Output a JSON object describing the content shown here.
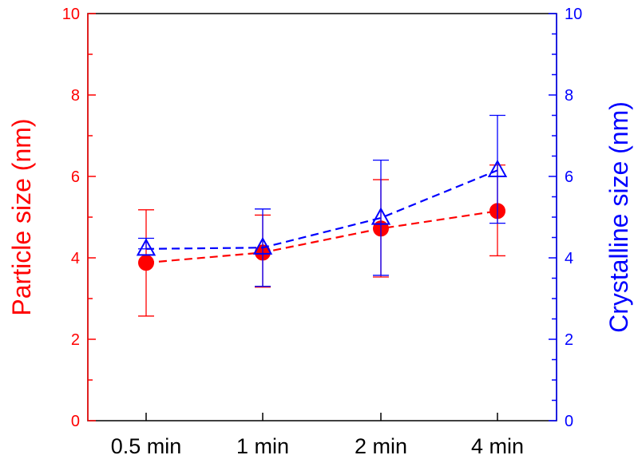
{
  "chart_data": {
    "type": "line",
    "categories": [
      "0.5 min",
      "1 min",
      "2 min",
      "4 min"
    ],
    "ylabel_left": "Particle size (nm)",
    "ylabel_right": "Crystalline size (nm)",
    "ylim_left": [
      0,
      10
    ],
    "ylim_right": [
      0,
      10
    ],
    "yticks_left": [
      "0",
      "2",
      "4",
      "6",
      "8",
      "10"
    ],
    "yticks_right": [
      "0",
      "2",
      "4",
      "6",
      "8",
      "10"
    ],
    "grid": false,
    "series": [
      {
        "axis": "left",
        "color": "#ff0000",
        "marker": "filled-circle",
        "line": "dashed",
        "values": [
          3.88,
          4.13,
          4.72,
          5.15
        ],
        "err_low": [
          2.57,
          3.28,
          3.53,
          4.05
        ],
        "err_high": [
          5.18,
          5.05,
          5.92,
          6.28
        ]
      },
      {
        "axis": "right",
        "color": "#0000ff",
        "marker": "open-triangle",
        "line": "dashed",
        "values": [
          4.22,
          4.25,
          4.98,
          6.15
        ],
        "err_low": [
          4.22,
          3.3,
          3.57,
          4.85
        ],
        "err_high": [
          4.48,
          5.2,
          6.4,
          7.5
        ]
      }
    ]
  }
}
